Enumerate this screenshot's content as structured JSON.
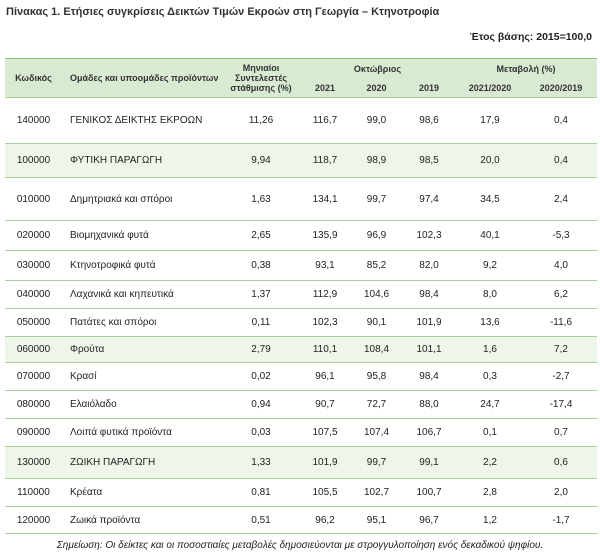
{
  "header": {
    "title": "Πίνακας 1. Ετήσιες συγκρίσεις Δεικτών Τιμών Εκροών στη Γεωργία – Κτηνοτροφία",
    "base": "Έτος βάσης: 2015=100,0"
  },
  "table": {
    "columns": {
      "code": "Κωδικός",
      "group": "Ομάδες και υποομάδες προϊόντων",
      "weight": "Μηνιαίοι Συντελεστές στάθμισης (%)",
      "october": "Οκτώβριος",
      "years": [
        "2021",
        "2020",
        "2019"
      ],
      "change": "Μεταβολή (%)",
      "change_periods": [
        "2021/2020",
        "2020/2019"
      ]
    },
    "rows": [
      [
        "140000",
        "ΓΕΝΙΚΟΣ ΔΕΙΚΤΗΣ ΕΚΡΟΩΝ",
        "11,26",
        "116,7",
        "99,0",
        "98,6",
        "17,9",
        "0,4"
      ],
      [
        "100000",
        "ΦΥΤΙΚΗ ΠΑΡΑΓΩΓΗ",
        "9,94",
        "118,7",
        "98,9",
        "98,5",
        "20,0",
        "0,4"
      ],
      [
        "010000",
        "Δημητριακά και σπόροι",
        "1,63",
        "134,1",
        "99,7",
        "97,4",
        "34,5",
        "2,4"
      ],
      [
        "020000",
        "Βιομηχανικά φυτά",
        "2,65",
        "135,9",
        "96,9",
        "102,3",
        "40,1",
        "-5,3"
      ],
      [
        "030000",
        "Κτηνοτροφικά φυτά",
        "0,38",
        "93,1",
        "85,2",
        "82,0",
        "9,2",
        "4,0"
      ],
      [
        "040000",
        "Λαχανικά και κηπευτικά",
        "1,37",
        "112,9",
        "104,6",
        "98,4",
        "8,0",
        "6,2"
      ],
      [
        "050000",
        "Πατάτες και σπόροι",
        "0,11",
        "102,3",
        "90,1",
        "101,9",
        "13,6",
        "-11,6"
      ],
      [
        "060000",
        "Φρούτα",
        "2,79",
        "110,1",
        "108,4",
        "101,1",
        "1,6",
        "7,2"
      ],
      [
        "070000",
        "Κρασί",
        "0,02",
        "96,1",
        "95,8",
        "98,4",
        "0,3",
        "-2,7"
      ],
      [
        "080000",
        "Ελαιόλαδο",
        "0,94",
        "90,7",
        "72,7",
        "88,0",
        "24,7",
        "-17,4"
      ],
      [
        "090000",
        "Λοιπά φυτικά προϊόντα",
        "0,03",
        "107,5",
        "107,4",
        "106,7",
        "0,1",
        "0,7"
      ],
      [
        "130000",
        "ΖΩΙΚΗ ΠΑΡΑΓΩΓΗ",
        "1,33",
        "101,9",
        "99,7",
        "99,1",
        "2,2",
        "0,6"
      ],
      [
        "110000",
        "Κρέατα",
        "0,81",
        "105,5",
        "102,7",
        "100,7",
        "2,8",
        "2,0"
      ],
      [
        "120000",
        "Ζωικά προϊόντα",
        "0,51",
        "96,2",
        "95,1",
        "96,7",
        "1,2",
        "-1,7"
      ]
    ]
  },
  "note": "Σημείωση: Οι δείκτες και οι ποσοστιαίες μεταβολές δημοσιεύονται με στρογγυλοποίηση ενός δεκαδικού ψηφίου."
}
